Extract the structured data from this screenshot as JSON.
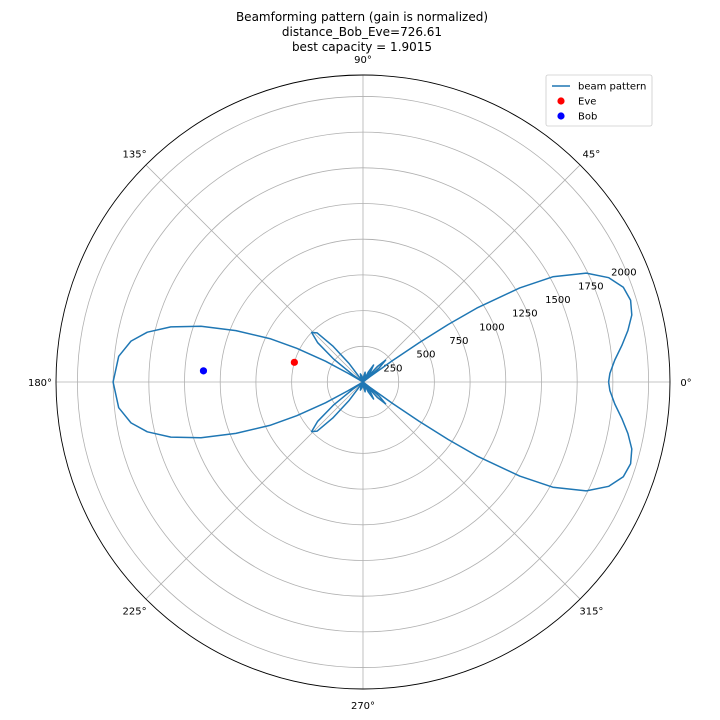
{
  "chart_data": {
    "type": "polar",
    "title_lines": [
      "Beamforming pattern (gain is normalized)",
      "distance_Bob_Eve=726.61",
      "best capacity = 1.9015"
    ],
    "angle_ticks": [
      {
        "deg": 0,
        "label": "0°"
      },
      {
        "deg": 45,
        "label": "45°"
      },
      {
        "deg": 90,
        "label": "90°"
      },
      {
        "deg": 135,
        "label": "135°"
      },
      {
        "deg": 180,
        "label": "180°"
      },
      {
        "deg": 225,
        "label": "225°"
      },
      {
        "deg": 270,
        "label": "270°"
      },
      {
        "deg": 315,
        "label": "315°"
      }
    ],
    "radial_ticks": [
      {
        "r": 250,
        "label": "250"
      },
      {
        "r": 500,
        "label": "500"
      },
      {
        "r": 750,
        "label": "750"
      },
      {
        "r": 1000,
        "label": "1000"
      },
      {
        "r": 1250,
        "label": "1250"
      },
      {
        "r": 1500,
        "label": "1500"
      },
      {
        "r": 1750,
        "label": "1750"
      },
      {
        "r": 2000,
        "label": "2000"
      }
    ],
    "r_max": 2150,
    "grid": true,
    "legend_position": "top-right",
    "series": [
      {
        "name": "beam pattern",
        "kind": "line",
        "color": "#1f77b4",
        "points": [
          [
            0,
            1720
          ],
          [
            2,
            1730
          ],
          [
            5,
            1770
          ],
          [
            8,
            1830
          ],
          [
            11,
            1890
          ],
          [
            14,
            1940
          ],
          [
            17,
            1960
          ],
          [
            20,
            1940
          ],
          [
            23,
            1870
          ],
          [
            26,
            1740
          ],
          [
            29,
            1520
          ],
          [
            31,
            1280
          ],
          [
            33,
            950
          ],
          [
            34,
            720
          ],
          [
            35,
            480
          ],
          [
            36,
            250
          ],
          [
            37,
            60
          ],
          [
            38,
            0
          ],
          [
            41,
            150
          ],
          [
            44,
            220
          ],
          [
            47,
            150
          ],
          [
            50,
            0
          ],
          [
            54,
            90
          ],
          [
            58,
            140
          ],
          [
            62,
            80
          ],
          [
            66,
            0
          ],
          [
            72,
            50
          ],
          [
            78,
            70
          ],
          [
            84,
            30
          ],
          [
            90,
            0
          ],
          [
            100,
            40
          ],
          [
            108,
            60
          ],
          [
            116,
            30
          ],
          [
            124,
            0
          ],
          [
            127,
            160
          ],
          [
            130,
            330
          ],
          [
            133,
            470
          ],
          [
            136,
            500
          ],
          [
            139,
            420
          ],
          [
            142,
            260
          ],
          [
            145,
            80
          ],
          [
            148,
            0
          ],
          [
            150,
            120
          ],
          [
            151,
            300
          ],
          [
            153,
            520
          ],
          [
            155,
            720
          ],
          [
            158,
            960
          ],
          [
            161,
            1200
          ],
          [
            164,
            1400
          ],
          [
            167,
            1550
          ],
          [
            170,
            1650
          ],
          [
            174,
            1720
          ],
          [
            180,
            1750
          ],
          [
            186,
            1720
          ],
          [
            190,
            1650
          ],
          [
            193,
            1550
          ],
          [
            196,
            1400
          ],
          [
            199,
            1200
          ],
          [
            202,
            960
          ],
          [
            205,
            720
          ],
          [
            207,
            520
          ],
          [
            209,
            300
          ],
          [
            210,
            120
          ],
          [
            212,
            0
          ],
          [
            215,
            80
          ],
          [
            218,
            260
          ],
          [
            221,
            420
          ],
          [
            224,
            500
          ],
          [
            227,
            470
          ],
          [
            230,
            330
          ],
          [
            233,
            160
          ],
          [
            236,
            0
          ],
          [
            244,
            30
          ],
          [
            252,
            60
          ],
          [
            260,
            40
          ],
          [
            270,
            0
          ],
          [
            276,
            30
          ],
          [
            282,
            70
          ],
          [
            288,
            50
          ],
          [
            294,
            0
          ],
          [
            298,
            80
          ],
          [
            302,
            140
          ],
          [
            306,
            90
          ],
          [
            310,
            0
          ],
          [
            313,
            150
          ],
          [
            316,
            220
          ],
          [
            319,
            150
          ],
          [
            322,
            0
          ],
          [
            323,
            60
          ],
          [
            324,
            250
          ],
          [
            325,
            480
          ],
          [
            326,
            720
          ],
          [
            327,
            950
          ],
          [
            329,
            1280
          ],
          [
            331,
            1520
          ],
          [
            334,
            1740
          ],
          [
            337,
            1870
          ],
          [
            340,
            1940
          ],
          [
            343,
            1960
          ],
          [
            346,
            1940
          ],
          [
            349,
            1890
          ],
          [
            352,
            1830
          ],
          [
            355,
            1770
          ],
          [
            358,
            1730
          ],
          [
            360,
            1720
          ]
        ]
      },
      {
        "name": "Eve",
        "kind": "point",
        "color": "#ff0000",
        "theta": 164,
        "r": 500
      },
      {
        "name": "Bob",
        "kind": "point",
        "color": "#0000ff",
        "theta": 176,
        "r": 1120
      }
    ]
  }
}
